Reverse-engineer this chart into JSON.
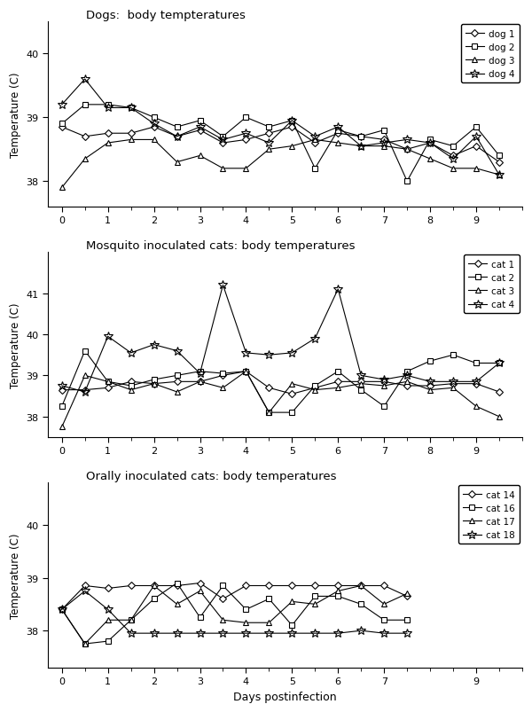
{
  "dogs": {
    "title": "Dogs:  body tempteratures",
    "series": [
      {
        "x": [
          0,
          0.5,
          1,
          1.5,
          2,
          2.5,
          3,
          3.5,
          4,
          4.5,
          5,
          5.5,
          6,
          6.5,
          7,
          7.5,
          8,
          8.5,
          9,
          9.5
        ],
        "y": [
          38.85,
          38.7,
          38.75,
          38.75,
          38.85,
          38.7,
          38.8,
          38.6,
          38.65,
          38.75,
          38.85,
          38.6,
          38.75,
          38.7,
          38.65,
          38.5,
          38.6,
          38.4,
          38.55,
          38.3
        ],
        "marker": "D",
        "label": "dog 1"
      },
      {
        "x": [
          0,
          0.5,
          1,
          1.5,
          2,
          2.5,
          3,
          3.5,
          4,
          4.5,
          5,
          5.5,
          6,
          6.5,
          7,
          7.5,
          8,
          8.5,
          9,
          9.5
        ],
        "y": [
          38.9,
          39.2,
          39.2,
          39.15,
          39.0,
          38.85,
          38.95,
          38.7,
          39.0,
          38.85,
          38.95,
          38.2,
          38.8,
          38.7,
          38.8,
          38.0,
          38.65,
          38.55,
          38.85,
          38.4
        ],
        "marker": "s",
        "label": "dog 2"
      },
      {
        "x": [
          0,
          0.5,
          1,
          1.5,
          2,
          2.5,
          3,
          3.5,
          4,
          4.5,
          5,
          5.5,
          6,
          6.5,
          7,
          7.5,
          8,
          8.5,
          9,
          9.5
        ],
        "y": [
          37.9,
          38.35,
          38.6,
          38.65,
          38.65,
          38.3,
          38.4,
          38.2,
          38.2,
          38.5,
          38.55,
          38.65,
          38.6,
          38.55,
          38.55,
          38.5,
          38.35,
          38.2,
          38.2,
          38.1
        ],
        "marker": "^",
        "label": "dog 3"
      },
      {
        "x": [
          0,
          0.5,
          1,
          1.5,
          2,
          2.5,
          3,
          3.5,
          4,
          4.5,
          5,
          5.5,
          6,
          6.5,
          7,
          7.5,
          8,
          8.5,
          9,
          9.5
        ],
        "y": [
          39.2,
          39.6,
          39.15,
          39.15,
          38.9,
          38.7,
          38.85,
          38.65,
          38.75,
          38.6,
          38.95,
          38.7,
          38.85,
          38.55,
          38.6,
          38.65,
          38.6,
          38.35,
          38.7,
          38.1
        ],
        "marker": "*",
        "label": "dog 4"
      }
    ],
    "xlim": [
      -0.3,
      10.0
    ],
    "ylim": [
      37.6,
      40.5
    ],
    "yticks": [
      38.0,
      39.0,
      40.0
    ],
    "xticks": [
      0,
      1,
      2,
      3,
      4,
      5,
      6,
      7,
      8,
      9
    ]
  },
  "mosquito_cats": {
    "title": "Mosquito inoculated cats: body temperatures",
    "series": [
      {
        "x": [
          0,
          0.5,
          1,
          1.5,
          2,
          2.5,
          3,
          3.5,
          4,
          4.5,
          5,
          5.5,
          6,
          6.5,
          7,
          7.5,
          8,
          8.5,
          9,
          9.5
        ],
        "y": [
          38.65,
          38.65,
          38.7,
          38.85,
          38.8,
          38.85,
          38.85,
          39.0,
          39.1,
          38.7,
          38.55,
          38.7,
          38.85,
          38.85,
          38.85,
          38.75,
          38.75,
          38.8,
          38.8,
          38.6
        ],
        "marker": "D",
        "label": "cat 1"
      },
      {
        "x": [
          0,
          0.5,
          1,
          1.5,
          2,
          2.5,
          3,
          3.5,
          4,
          4.5,
          5,
          5.5,
          6,
          6.5,
          7,
          7.5,
          8,
          8.5,
          9,
          9.5
        ],
        "y": [
          38.25,
          39.6,
          38.85,
          38.75,
          38.9,
          39.0,
          39.1,
          39.05,
          39.1,
          38.1,
          38.1,
          38.75,
          39.1,
          38.65,
          38.25,
          39.1,
          39.35,
          39.5,
          39.3,
          39.3
        ],
        "marker": "s",
        "label": "cat 2"
      },
      {
        "x": [
          0,
          0.5,
          1,
          1.5,
          2,
          2.5,
          3,
          3.5,
          4,
          4.5,
          5,
          5.5,
          6,
          6.5,
          7,
          7.5,
          8,
          8.5,
          9,
          9.5
        ],
        "y": [
          37.75,
          39.0,
          38.85,
          38.65,
          38.8,
          38.6,
          38.85,
          38.7,
          39.1,
          38.1,
          38.8,
          38.65,
          38.7,
          38.8,
          38.75,
          38.85,
          38.65,
          38.7,
          38.25,
          38.0
        ],
        "marker": "^",
        "label": "cat 3"
      },
      {
        "x": [
          0,
          0.5,
          1,
          1.5,
          2,
          2.5,
          3,
          3.5,
          4,
          4.5,
          5,
          5.5,
          6,
          6.5,
          7,
          7.5,
          8,
          8.5,
          9,
          9.5
        ],
        "y": [
          38.75,
          38.6,
          39.95,
          39.55,
          39.75,
          39.6,
          39.05,
          41.2,
          39.55,
          39.5,
          39.55,
          39.9,
          41.1,
          39.0,
          38.9,
          39.0,
          38.85,
          38.85,
          38.85,
          39.3
        ],
        "marker": "*",
        "label": "cat 4"
      }
    ],
    "xlim": [
      -0.3,
      10.0
    ],
    "ylim": [
      37.5,
      42.0
    ],
    "yticks": [
      38.0,
      39.0,
      40.0,
      41.0
    ],
    "xticks": [
      0,
      1,
      2,
      3,
      4,
      5,
      6,
      7,
      8,
      9
    ]
  },
  "oral_cats": {
    "title": "Orally inoculated cats: body temperatures",
    "series": [
      {
        "x": [
          0,
          0.5,
          1,
          1.5,
          2,
          2.5,
          3,
          3.5,
          4,
          4.5,
          5,
          5.5,
          6,
          6.5,
          7,
          7.5
        ],
        "y": [
          38.4,
          38.85,
          38.8,
          38.85,
          38.85,
          38.85,
          38.9,
          38.6,
          38.85,
          38.85,
          38.85,
          38.85,
          38.85,
          38.85,
          38.85,
          38.65
        ],
        "marker": "D",
        "label": "cat 14"
      },
      {
        "x": [
          0,
          0.5,
          1,
          1.5,
          2,
          2.5,
          3,
          3.5,
          4,
          4.5,
          5,
          5.5,
          6,
          6.5,
          7,
          7.5
        ],
        "y": [
          38.4,
          37.75,
          37.8,
          38.2,
          38.6,
          38.9,
          38.25,
          38.85,
          38.4,
          38.6,
          38.1,
          38.65,
          38.65,
          38.5,
          38.2,
          38.2
        ],
        "marker": "s",
        "label": "cat 16"
      },
      {
        "x": [
          0,
          0.5,
          1,
          1.5,
          2,
          2.5,
          3,
          3.5,
          4,
          4.5,
          5,
          5.5,
          6,
          6.5,
          7,
          7.5
        ],
        "y": [
          38.4,
          37.75,
          38.2,
          38.2,
          38.85,
          38.5,
          38.75,
          38.2,
          38.15,
          38.15,
          38.55,
          38.5,
          38.75,
          38.85,
          38.5,
          38.7
        ],
        "marker": "^",
        "label": "cat 17"
      },
      {
        "x": [
          0,
          0.5,
          1,
          1.5,
          2,
          2.5,
          3,
          3.5,
          4,
          4.5,
          5,
          5.5,
          6,
          6.5,
          7,
          7.5
        ],
        "y": [
          38.4,
          38.75,
          38.4,
          37.95,
          37.95,
          37.95,
          37.95,
          37.95,
          37.95,
          37.95,
          37.95,
          37.95,
          37.95,
          38.0,
          37.95,
          37.95
        ],
        "marker": "*",
        "label": "cat 18"
      }
    ],
    "xlim": [
      -0.3,
      10.0
    ],
    "ylim": [
      37.3,
      40.8
    ],
    "yticks": [
      38.0,
      39.0,
      40.0
    ],
    "xticks": [
      0,
      1,
      2,
      3,
      4,
      5,
      6,
      7,
      9
    ]
  },
  "ylabel": "Temperature (C)",
  "xlabel": "Days postinfection",
  "line_color": "#000000",
  "background": "#ffffff",
  "linewidth": 0.8
}
